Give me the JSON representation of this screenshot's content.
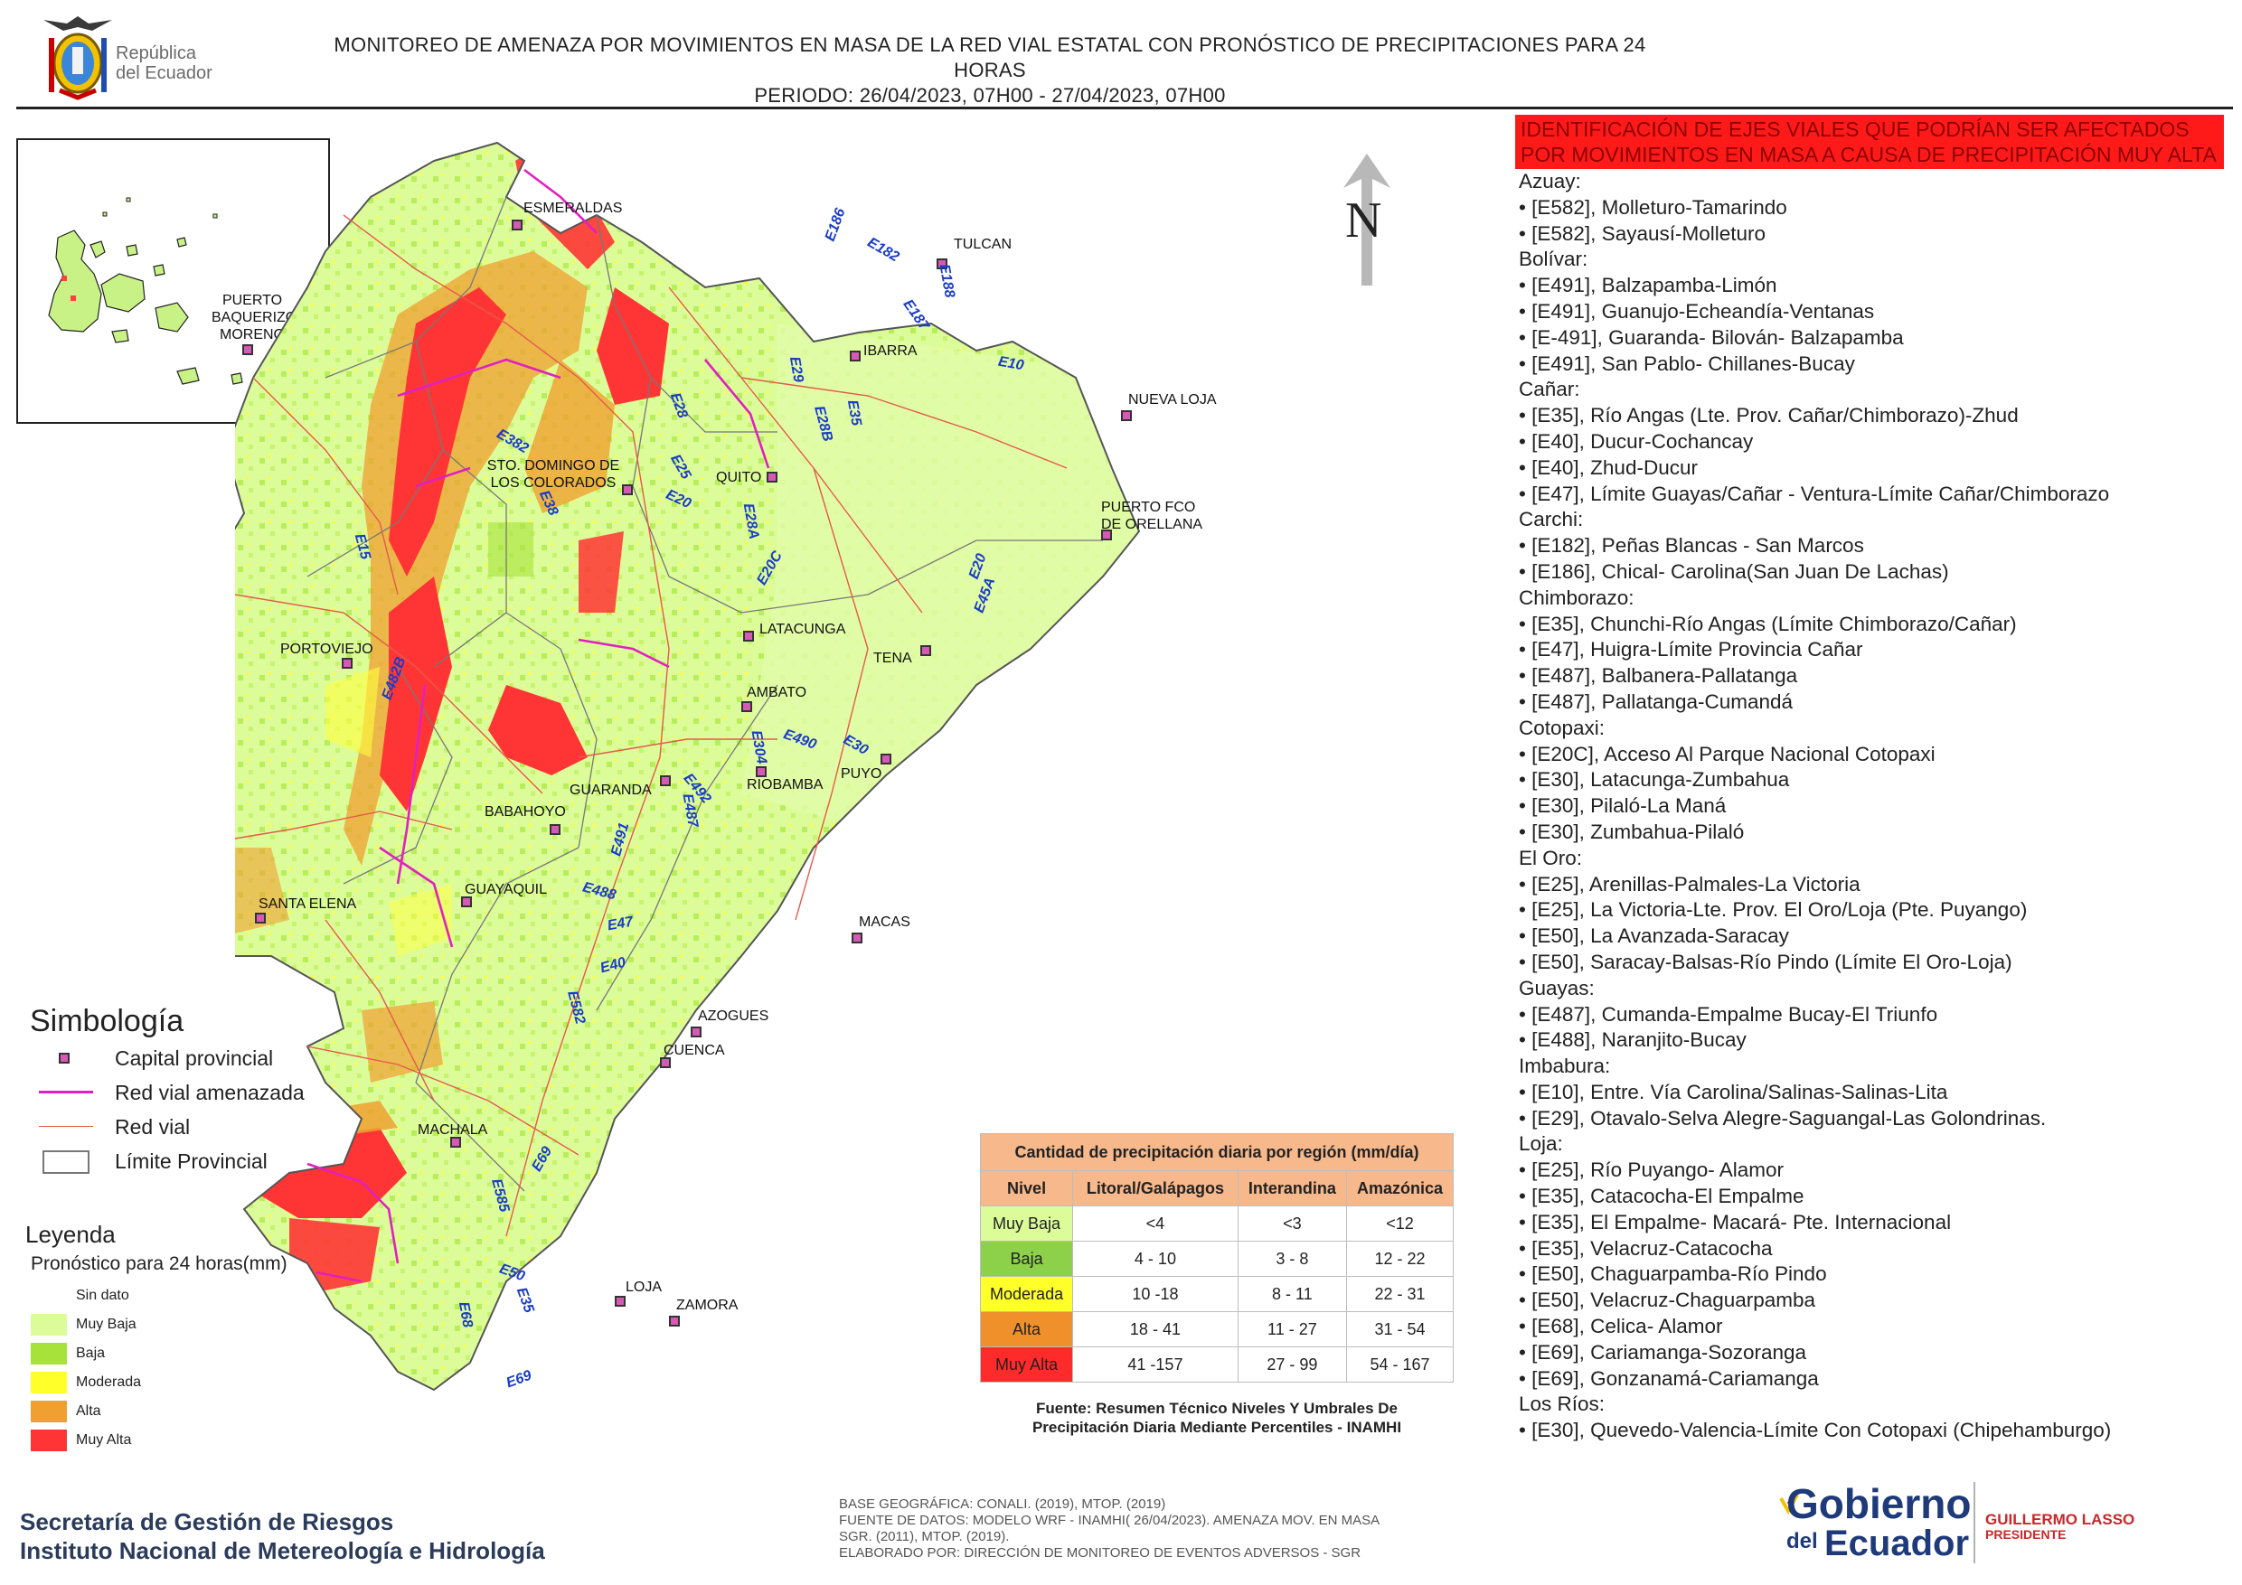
{
  "header": {
    "logo_text_line1": "República",
    "logo_text_line2": "del Ecuador",
    "title_line1": "MONITOREO DE AMENAZA POR MOVIMIENTOS EN MASA DE LA RED VIAL  ESTATAL  CON PRONÓSTICO  DE  PRECIPITACIONES PARA 24 HORAS",
    "title_line2": "PERIODO: 26/04/2023, 07H00 - 27/04/2023, 07H00"
  },
  "north_label": "N",
  "inset": {
    "place": "PUERTO BAQUERIZO MORENO"
  },
  "places": [
    {
      "name": "ESMERALDAS"
    },
    {
      "name": "TULCAN"
    },
    {
      "name": "IBARRA"
    },
    {
      "name": "NUEVA LOJA"
    },
    {
      "name": "STO. DOMINGO DE LOS COLORADOS"
    },
    {
      "name": "QUITO"
    },
    {
      "name": "PUERTO FCO DE ORELLANA"
    },
    {
      "name": "PORTOVIEJO"
    },
    {
      "name": "LATACUNGA"
    },
    {
      "name": "TENA"
    },
    {
      "name": "AMBATO"
    },
    {
      "name": "PUYO"
    },
    {
      "name": "GUARANDA"
    },
    {
      "name": "RIOBAMBA"
    },
    {
      "name": "BABAHOYO"
    },
    {
      "name": "SANTA ELENA"
    },
    {
      "name": "GUAYAQUIL"
    },
    {
      "name": "MACAS"
    },
    {
      "name": "AZOGUES"
    },
    {
      "name": "CUENCA"
    },
    {
      "name": "MACHALA"
    },
    {
      "name": "LOJA"
    },
    {
      "name": "ZAMORA"
    }
  ],
  "road_labels": [
    "E182",
    "E186",
    "E187",
    "E188",
    "E10",
    "E28",
    "E29",
    "E28B",
    "E35",
    "E382",
    "E25",
    "E20",
    "E38",
    "E28A",
    "E20C",
    "E15",
    "E20",
    "E45A",
    "E482B",
    "E30",
    "E490",
    "E304",
    "E492",
    "E487",
    "E491",
    "E488",
    "E47",
    "E40",
    "E582",
    "E69",
    "E585",
    "E50",
    "E68",
    "E35",
    "E69"
  ],
  "identification": {
    "heading": "IDENTIFICACIÓN DE EJES VIALES QUE PODRÍAN SER AFECTADOS POR MOVIMIENTOS EN MASA A CAUSA DE PRECIPITACIÓN MUY ALTA",
    "provinces": [
      {
        "name": "Azuay:",
        "roads": [
          "• [E582], Molleturo-Tamarindo",
          "• [E582], Sayausí-Molleturo"
        ]
      },
      {
        "name": "Bolívar:",
        "roads": [
          "• [E491], Balzapamba-Limón",
          "• [E491], Guanujo-Echeandía-Ventanas",
          "• [E-491], Guaranda- Bilován- Balzapamba",
          "• [E491], San Pablo- Chillanes-Bucay"
        ]
      },
      {
        "name": "Cañar:",
        "roads": [
          "• [E35], Río Angas (Lte. Prov. Cañar/Chimborazo)-Zhud",
          "• [E40], Ducur-Cochancay",
          "• [E40], Zhud-Ducur",
          "• [E47], Límite Guayas/Cañar - Ventura-Límite Cañar/Chimborazo"
        ]
      },
      {
        "name": "Carchi:",
        "roads": [
          "• [E182], Peñas Blancas - San Marcos",
          "• [E186], Chical- Carolina(San Juan De Lachas)"
        ]
      },
      {
        "name": "Chimborazo:",
        "roads": [
          "• [E35], Chunchi-Río Angas (Límite Chimborazo/Cañar)",
          "• [E47], Huigra-Límite Provincia Cañar",
          "• [E487], Balbanera-Pallatanga",
          "• [E487], Pallatanga-Cumandá"
        ]
      },
      {
        "name": "Cotopaxi:",
        "roads": [
          "• [E20C], Acceso Al Parque Nacional Cotopaxi",
          "• [E30], Latacunga-Zumbahua",
          "• [E30], Pilaló-La Maná",
          "• [E30], Zumbahua-Pilaló"
        ]
      },
      {
        "name": "El Oro:",
        "roads": [
          "• [E25], Arenillas-Palmales-La Victoria",
          "• [E25], La Victoria-Lte. Prov. El Oro/Loja (Pte. Puyango)",
          "• [E50], La Avanzada-Saracay",
          "• [E50], Saracay-Balsas-Río Pindo (Límite El Oro-Loja)"
        ]
      },
      {
        "name": "Guayas:",
        "roads": [
          "• [E487], Cumanda-Empalme Bucay-El Triunfo",
          "• [E488], Naranjito-Bucay"
        ]
      },
      {
        "name": "Imbabura:",
        "roads": [
          "• [E10], Entre. Vía Carolina/Salinas-Salinas-Lita",
          "• [E29], Otavalo-Selva Alegre-Saguangal-Las Golondrinas."
        ]
      },
      {
        "name": "Loja:",
        "roads": [
          "• [E25], Río Puyango- Alamor",
          "• [E35], Catacocha-El Empalme",
          "• [E35], El Empalme- Macará- Pte. Internacional",
          "• [E35], Velacruz-Catacocha",
          "• [E50], Chaguarpamba-Río Pindo",
          "• [E50], Velacruz-Chaguarpamba",
          "• [E68], Celica- Alamor",
          "• [E69], Cariamanga-Sozoranga",
          "• [E69], Gonzanamá-Cariamanga"
        ]
      },
      {
        "name": "Los Ríos:",
        "roads": [
          "• [E30], Quevedo-Valencia-Límite Con Cotopaxi (Chipehamburgo)"
        ]
      }
    ]
  },
  "simbologia": {
    "title": "Simbología",
    "items": [
      {
        "label": "Capital provincial",
        "symbol": "capital-square-icon"
      },
      {
        "label": "Red vial amenazada",
        "symbol": "threatened-road-line-icon",
        "color": "#e020c0"
      },
      {
        "label": "Red vial",
        "symbol": "road-line-icon",
        "color": "#e55a4a"
      },
      {
        "label": "Límite Provincial",
        "symbol": "province-boundary-icon"
      }
    ]
  },
  "leyenda": {
    "title": "Leyenda",
    "subtitle": "Pronóstico para 24 horas(mm)",
    "items": [
      {
        "label": "Sin dato",
        "color": "#ffffff"
      },
      {
        "label": "Muy Baja",
        "color": "#dcfc9a"
      },
      {
        "label": "Baja",
        "color": "#a6e23a"
      },
      {
        "label": "Moderada",
        "color": "#ffff2a"
      },
      {
        "label": "Alta",
        "color": "#f0a030"
      },
      {
        "label": "Muy Alta",
        "color": "#ff3535"
      }
    ]
  },
  "precip_table": {
    "caption": "Cantidad de precipitación diaria por región (mm/día)",
    "headers": [
      "Nivel",
      "Litoral/Galápagos",
      "Interandina",
      "Amazónica"
    ],
    "rows": [
      {
        "level": "Muy Baja",
        "color": "#dcfc9a",
        "values": [
          "<4",
          "<3",
          "<12"
        ]
      },
      {
        "level": "Baja",
        "color": "#8dd04a",
        "values": [
          "4 - 10",
          "3 - 8",
          "12 - 22"
        ]
      },
      {
        "level": "Moderada",
        "color": "#ffff2a",
        "values": [
          "10 -18",
          "8 - 11",
          "22 - 31"
        ]
      },
      {
        "level": "Alta",
        "color": "#f0902a",
        "values": [
          "18 - 41",
          "11 - 27",
          "31 - 54"
        ]
      },
      {
        "level": "Muy Alta",
        "color": "#ff2a2a",
        "values": [
          "41 -157",
          "27 - 99",
          "54 - 167"
        ]
      }
    ],
    "source_line1": "Fuente: Resumen Técnico Niveles Y Umbrales De",
    "source_line2": "Precipitación Diaria Mediante Percentiles - INAMHI"
  },
  "base_notes": [
    "BASE GEOGRÁFICA: CONALI. (2019), MTOP. (2019)",
    "FUENTE DE DATOS: MODELO WRF - INAMHI( 26/04/2023).  AMENAZA MOV. EN MASA",
    "SGR. (2011), MTOP. (2019).",
    "ELABORADO POR: DIRECCIÓN DE MONITOREO DE EVENTOS ADVERSOS - SGR"
  ],
  "institution": {
    "line1": "Secretaría de Gestión de Riesgos",
    "line2": "Instituto Nacional de Metereología e Hidrología"
  },
  "government_logo": {
    "line1": "Gobierno",
    "line2": "del",
    "line3": "Ecuador",
    "president_name": "GUILLERMO LASSO",
    "president_title": "PRESIDENTE"
  }
}
